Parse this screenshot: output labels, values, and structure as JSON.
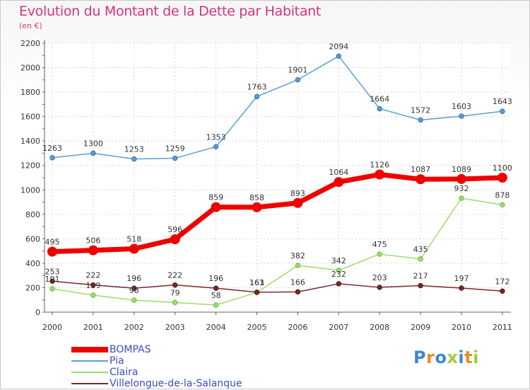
{
  "title": "Evolution du Montant de la Dette par Habitant",
  "subtitle": "(en €)",
  "chart_data": {
    "type": "line",
    "title": "Evolution du Montant de la Dette par Habitant",
    "subtitle": "(en €)",
    "x": [
      "2000",
      "2001",
      "2002",
      "2003",
      "2004",
      "2005",
      "2006",
      "2007",
      "2008",
      "2009",
      "2010",
      "2011"
    ],
    "ylim": [
      0,
      2200
    ],
    "yticks": [
      0,
      200,
      400,
      600,
      800,
      1000,
      1200,
      1400,
      1600,
      1800,
      2000,
      2200
    ],
    "grid": true,
    "legend_position": "bottom-left",
    "series": [
      {
        "name": "BOMPAS",
        "color": "#ee0000",
        "width": "thick",
        "values": [
          495,
          506,
          518,
          596,
          859,
          858,
          893,
          1064,
          1126,
          1087,
          1089,
          1100
        ]
      },
      {
        "name": "Pia",
        "color": "#5a9fd4",
        "width": "thin",
        "values": [
          1263,
          1300,
          1253,
          1259,
          1353,
          1763,
          1901,
          2094,
          1664,
          1572,
          1603,
          1643
        ]
      },
      {
        "name": "Claira",
        "color": "#9edc6e",
        "width": "thin",
        "values": [
          191,
          139,
          98,
          79,
          58,
          161,
          382,
          342,
          475,
          435,
          932,
          878
        ]
      },
      {
        "name": "Villelongue-de-la-Salanque",
        "color": "#7a2a2a",
        "width": "thin",
        "values": [
          253,
          222,
          196,
          222,
          196,
          163,
          166,
          232,
          203,
          217,
          197,
          172
        ]
      }
    ]
  },
  "logo": {
    "letters": [
      "P",
      "r",
      "o",
      "x",
      "i",
      "t",
      "i"
    ],
    "colors": [
      "#3a88d8",
      "#f08a1a",
      "#3a88d8",
      "#9ad03a",
      "#3a88d8",
      "#f08a1a",
      "#9ad03a"
    ]
  }
}
